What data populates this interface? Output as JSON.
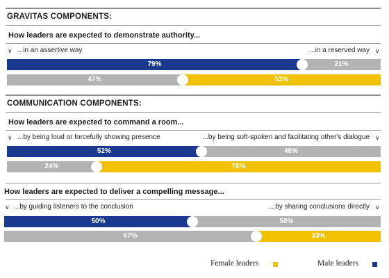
{
  "colors": {
    "male": "#1a3a8f",
    "female": "#f2c200",
    "grey": "#b3b3b3",
    "text_on_dark": "#ffffff",
    "text_on_light": "#ffffff"
  },
  "sections": [
    {
      "title": "GRAVITAS COMPONENTS:",
      "question": "How leaders are expected to demonstrate authority...",
      "left_option": "...in an assertive way",
      "right_option": "...in a reserved way"
    },
    {
      "title": "COMMUNICATION COMPONENTS:",
      "question": "How leaders are expected to command a room...",
      "left_option": "...by being loud or forcefully showing presence",
      "right_option": "...by being soft-spoken and facilitating other's dialogue"
    },
    {
      "title": "",
      "question": "How leaders are expected to deliver a compelling message...",
      "left_option": "...by guiding listeners to the conclusion",
      "right_option": "...by sharing conclusions directly"
    }
  ],
  "legend": {
    "female": "Female leaders",
    "male": "Male leaders"
  },
  "chart_data": {
    "type": "bar",
    "orientation": "horizontal-stacked-100",
    "categories": [
      "How leaders are expected to demonstrate authority...",
      "How leaders are expected to command a room...",
      "How leaders are expected to deliver a compelling message..."
    ],
    "series": [
      {
        "name": "Male leaders",
        "left_values": [
          79,
          52,
          50
        ],
        "right_values": [
          21,
          48,
          50
        ],
        "left_labels": [
          "79%",
          "52%",
          "50%"
        ],
        "right_labels": [
          "21%",
          "48%",
          "50%"
        ]
      },
      {
        "name": "Female leaders",
        "left_values": [
          47,
          24,
          67
        ],
        "right_values": [
          53,
          76,
          33
        ],
        "left_labels": [
          "47%",
          "24%",
          "67%"
        ],
        "right_labels": [
          "53%",
          "76%",
          "33%"
        ]
      }
    ],
    "legend_position": "bottom-right",
    "xlim": [
      0,
      100
    ]
  }
}
